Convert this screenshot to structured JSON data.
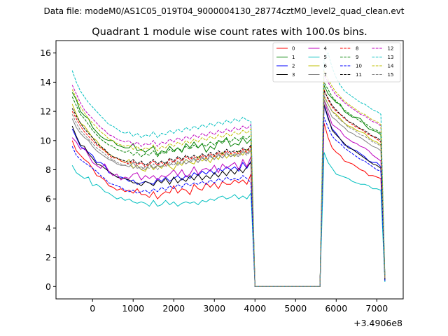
{
  "header": {
    "data_file_caption": "Data file: modeM0/AS1C05_019T04_9000004130_28774cztM0_level2_quad_clean.evt"
  },
  "chart_data": {
    "type": "line",
    "title": "Quadrant 1 module wise count rates with 100.0s bins.",
    "x_offset_label": "+3.4906e8",
    "xlim": [
      -900,
      7650
    ],
    "ylim": [
      -0.85,
      16.85
    ],
    "x_ticks": [
      0,
      1000,
      2000,
      3000,
      4000,
      5000,
      6000,
      7000
    ],
    "y_ticks": [
      0,
      2,
      4,
      6,
      8,
      10,
      12,
      14,
      16
    ],
    "x": [
      -500,
      -400,
      -300,
      -200,
      -100,
      0,
      100,
      200,
      300,
      400,
      500,
      600,
      700,
      800,
      900,
      1000,
      1100,
      1200,
      1300,
      1400,
      1500,
      1600,
      1700,
      1800,
      1900,
      2000,
      2100,
      2200,
      2300,
      2400,
      2500,
      2600,
      2700,
      2800,
      2900,
      3000,
      3100,
      3200,
      3300,
      3400,
      3500,
      3600,
      3700,
      3800,
      3900,
      4000,
      5600,
      5700,
      5800,
      5900,
      6000,
      6100,
      6200,
      6300,
      6400,
      6500,
      6600,
      6700,
      6800,
      6900,
      7000,
      7100,
      7200
    ],
    "series": [
      {
        "name": "0",
        "color": "#ff0000",
        "dash": "solid",
        "values": [
          10.0,
          9.3,
          9.0,
          8.7,
          8.5,
          8.1,
          7.6,
          7.5,
          7.3,
          6.9,
          6.8,
          6.6,
          6.7,
          6.5,
          6.6,
          6.4,
          6.7,
          6.3,
          6.3,
          6.1,
          6.5,
          6.0,
          6.3,
          6.5,
          6.4,
          6.9,
          6.4,
          6.7,
          6.6,
          6.3,
          7.0,
          6.7,
          6.6,
          7.1,
          6.8,
          7.1,
          6.7,
          7.2,
          7.0,
          7.0,
          7.3,
          7.1,
          7.3,
          7.0,
          7.7,
          0.0,
          0.0,
          11.2,
          10.2,
          9.5,
          9.2,
          9.0,
          8.6,
          8.5,
          8.4,
          8.2,
          8.0,
          7.9,
          7.6,
          7.6,
          7.5,
          7.4,
          0.4
        ]
      },
      {
        "name": "1",
        "color": "#008000",
        "dash": "solid",
        "values": [
          13.3,
          12.8,
          12.0,
          11.7,
          11.5,
          10.9,
          10.6,
          10.3,
          10.1,
          10.0,
          10.0,
          9.7,
          9.6,
          9.5,
          9.5,
          9.8,
          9.3,
          9.4,
          9.2,
          9.4,
          9.6,
          9.0,
          9.3,
          9.2,
          9.6,
          9.3,
          9.5,
          9.2,
          9.8,
          9.5,
          9.9,
          9.5,
          9.8,
          9.2,
          9.6,
          9.4,
          10.0,
          9.9,
          10.2,
          9.6,
          9.8,
          9.7,
          10.2,
          9.8,
          10.1,
          0.0,
          0.0,
          13.8,
          13.2,
          12.9,
          12.6,
          12.5,
          12.0,
          11.8,
          11.6,
          11.6,
          11.5,
          11.1,
          10.8,
          10.7,
          10.6,
          10.4,
          0.5
        ]
      },
      {
        "name": "2",
        "color": "#0000ff",
        "dash": "solid",
        "values": [
          10.8,
          10.2,
          9.6,
          9.4,
          9.2,
          9.0,
          8.5,
          8.5,
          8.3,
          7.8,
          7.7,
          7.5,
          7.5,
          7.4,
          7.2,
          7.3,
          7.0,
          7.1,
          7.2,
          7.1,
          7.0,
          7.4,
          7.2,
          7.5,
          7.2,
          7.4,
          7.6,
          7.3,
          7.6,
          7.4,
          7.8,
          7.6,
          7.9,
          7.7,
          8.0,
          7.7,
          8.1,
          7.9,
          8.2,
          8.0,
          8.2,
          7.9,
          8.5,
          8.1,
          8.6,
          0.0,
          0.0,
          12.4,
          11.5,
          10.8,
          10.5,
          10.1,
          9.7,
          9.6,
          9.4,
          9.3,
          9.1,
          8.9,
          8.6,
          8.5,
          8.5,
          8.2,
          0.4
        ]
      },
      {
        "name": "3",
        "color": "#000000",
        "dash": "solid",
        "values": [
          11.0,
          10.3,
          9.7,
          9.6,
          9.1,
          8.8,
          8.4,
          8.3,
          8.1,
          7.9,
          7.7,
          7.5,
          7.4,
          7.4,
          7.3,
          7.1,
          7.1,
          6.9,
          7.2,
          7.1,
          6.9,
          7.3,
          7.1,
          7.4,
          7.0,
          7.5,
          7.1,
          7.4,
          7.2,
          7.6,
          7.3,
          7.7,
          7.3,
          7.6,
          7.4,
          7.8,
          7.5,
          7.9,
          7.6,
          8.0,
          7.7,
          8.1,
          7.8,
          8.2,
          8.5,
          0.0,
          0.0,
          12.5,
          11.6,
          10.7,
          10.4,
          10.1,
          9.8,
          9.5,
          9.4,
          9.2,
          9.0,
          8.8,
          8.6,
          8.4,
          8.3,
          8.1,
          0.4
        ]
      },
      {
        "name": "4",
        "color": "#bf00bf",
        "dash": "solid",
        "values": [
          10.2,
          9.9,
          9.4,
          9.5,
          9.0,
          8.5,
          8.3,
          8.1,
          8.4,
          7.9,
          7.6,
          7.7,
          7.3,
          7.5,
          7.4,
          7.7,
          7.8,
          7.3,
          7.6,
          7.4,
          7.6,
          7.3,
          7.6,
          7.5,
          7.7,
          8.0,
          7.6,
          8.0,
          7.5,
          7.7,
          8.2,
          7.7,
          8.0,
          8.1,
          7.9,
          8.3,
          7.8,
          8.4,
          8.1,
          8.3,
          8.5,
          8.0,
          8.7,
          8.2,
          8.9,
          0.0,
          0.0,
          12.8,
          11.9,
          11.1,
          10.9,
          10.7,
          10.3,
          10.1,
          9.9,
          9.8,
          9.6,
          9.5,
          9.3,
          9.0,
          8.8,
          8.6,
          0.5
        ]
      },
      {
        "name": "5",
        "color": "#00bfbf",
        "dash": "solid",
        "values": [
          8.3,
          7.8,
          7.6,
          7.4,
          7.5,
          6.9,
          7.0,
          6.8,
          6.5,
          6.4,
          6.2,
          6.0,
          6.1,
          5.9,
          6.0,
          5.8,
          5.7,
          5.8,
          5.7,
          5.5,
          5.9,
          5.5,
          5.6,
          5.9,
          5.6,
          5.8,
          5.5,
          5.7,
          5.8,
          5.7,
          5.8,
          5.6,
          5.9,
          5.8,
          6.0,
          5.9,
          6.1,
          6.2,
          6.0,
          6.1,
          6.3,
          6.0,
          6.2,
          6.0,
          6.4,
          0.0,
          0.0,
          9.2,
          8.5,
          8.1,
          7.7,
          7.6,
          7.5,
          7.4,
          7.2,
          7.1,
          7.0,
          7.0,
          6.9,
          6.7,
          6.7,
          6.6,
          0.3
        ]
      },
      {
        "name": "6",
        "color": "#bfbf00",
        "dash": "solid",
        "values": [
          12.5,
          11.8,
          11.2,
          11.0,
          10.6,
          10.2,
          10.0,
          9.6,
          9.3,
          9.1,
          8.9,
          8.8,
          8.6,
          8.5,
          8.7,
          8.1,
          8.3,
          8.0,
          7.9,
          8.4,
          8.0,
          8.3,
          8.1,
          8.5,
          8.2,
          8.0,
          8.5,
          8.3,
          8.7,
          8.5,
          8.4,
          8.9,
          8.6,
          8.8,
          8.5,
          9.0,
          8.7,
          9.2,
          8.8,
          9.1,
          8.9,
          9.3,
          9.0,
          9.4,
          9.2,
          0.0,
          0.0,
          13.0,
          12.5,
          12.0,
          11.8,
          11.5,
          11.2,
          11.0,
          10.9,
          10.7,
          10.6,
          10.5,
          10.2,
          10.0,
          9.9,
          9.7,
          0.5
        ]
      },
      {
        "name": "7",
        "color": "#808080",
        "dash": "solid",
        "values": [
          11.5,
          10.9,
          10.5,
          10.2,
          10.0,
          9.6,
          9.3,
          9.1,
          8.9,
          8.7,
          8.6,
          8.4,
          8.3,
          8.3,
          8.2,
          8.5,
          8.1,
          8.2,
          8.0,
          8.4,
          8.1,
          8.3,
          8.2,
          8.5,
          8.3,
          8.6,
          8.3,
          8.7,
          8.4,
          8.6,
          8.8,
          8.5,
          8.9,
          8.6,
          9.0,
          8.7,
          9.1,
          8.8,
          9.2,
          8.9,
          9.1,
          9.0,
          9.3,
          9.1,
          9.4,
          0.0,
          0.0,
          12.8,
          12.2,
          11.6,
          11.4,
          11.1,
          10.9,
          10.6,
          10.5,
          10.3,
          10.2,
          10.0,
          9.8,
          9.6,
          9.5,
          9.3,
          0.5
        ]
      },
      {
        "name": "8",
        "color": "#ff0000",
        "dash": "dashed",
        "values": [
          12.0,
          11.5,
          11.0,
          10.6,
          10.3,
          10.0,
          9.7,
          9.5,
          9.3,
          9.0,
          8.8,
          8.8,
          8.6,
          8.5,
          8.4,
          8.6,
          8.3,
          8.5,
          8.2,
          8.4,
          8.6,
          8.3,
          8.5,
          8.3,
          8.7,
          8.5,
          8.8,
          8.6,
          8.9,
          8.7,
          8.9,
          8.7,
          9.0,
          8.8,
          9.1,
          8.9,
          9.2,
          9.0,
          9.3,
          9.1,
          9.2,
          9.1,
          9.4,
          9.2,
          9.6,
          0.0,
          0.0,
          13.5,
          12.8,
          12.3,
          12.0,
          11.8,
          11.5,
          11.3,
          11.1,
          10.9,
          10.8,
          10.6,
          10.4,
          10.3,
          10.1,
          9.9,
          0.5
        ]
      },
      {
        "name": "9",
        "color": "#008000",
        "dash": "dashed",
        "values": [
          13.0,
          12.4,
          11.8,
          11.5,
          11.1,
          10.7,
          10.4,
          10.1,
          9.9,
          9.7,
          9.6,
          9.4,
          9.3,
          9.2,
          9.3,
          9.0,
          9.2,
          8.9,
          9.1,
          9.0,
          9.3,
          8.9,
          9.2,
          9.1,
          9.4,
          9.2,
          9.5,
          9.3,
          9.6,
          9.4,
          9.7,
          9.5,
          9.8,
          9.6,
          9.9,
          9.7,
          10.0,
          9.8,
          10.1,
          9.9,
          10.2,
          10.0,
          10.3,
          10.1,
          10.4,
          0.0,
          0.0,
          14.0,
          13.5,
          13.0,
          12.7,
          12.4,
          12.1,
          11.9,
          11.7,
          11.5,
          11.3,
          11.2,
          11.0,
          10.8,
          10.7,
          10.5,
          0.6
        ]
      },
      {
        "name": "10",
        "color": "#0000ff",
        "dash": "dashed",
        "values": [
          9.6,
          9.0,
          8.7,
          8.5,
          8.3,
          8.1,
          7.9,
          7.6,
          7.4,
          7.1,
          7.0,
          6.9,
          6.8,
          6.6,
          6.5,
          6.6,
          6.4,
          6.5,
          6.6,
          6.4,
          6.7,
          6.5,
          6.8,
          6.6,
          6.9,
          6.7,
          7.0,
          6.8,
          7.1,
          6.9,
          7.1,
          7.0,
          7.2,
          7.0,
          7.3,
          7.1,
          7.4,
          7.2,
          7.5,
          7.3,
          7.4,
          7.3,
          7.6,
          7.4,
          7.1,
          0.0,
          0.0,
          11.6,
          10.9,
          10.3,
          10.0,
          9.8,
          9.5,
          9.3,
          9.1,
          8.9,
          8.7,
          8.6,
          8.4,
          8.2,
          8.0,
          7.9,
          0.4
        ]
      },
      {
        "name": "11",
        "color": "#000000",
        "dash": "dashed",
        "values": [
          12.2,
          11.7,
          11.2,
          10.8,
          10.5,
          10.2,
          9.8,
          9.6,
          9.4,
          9.1,
          8.9,
          8.8,
          8.7,
          8.6,
          8.5,
          8.7,
          8.4,
          8.6,
          8.3,
          8.5,
          8.7,
          8.4,
          8.6,
          8.4,
          8.8,
          8.6,
          8.9,
          8.7,
          9.0,
          8.8,
          9.0,
          8.8,
          9.1,
          8.9,
          9.2,
          9.0,
          9.3,
          9.1,
          9.4,
          9.2,
          9.3,
          9.2,
          9.5,
          9.3,
          9.7,
          0.0,
          0.0,
          13.4,
          12.9,
          12.4,
          12.1,
          11.8,
          11.6,
          11.3,
          11.2,
          11.0,
          10.8,
          10.7,
          10.5,
          10.3,
          10.2,
          10.0,
          0.5
        ]
      },
      {
        "name": "12",
        "color": "#bf00bf",
        "dash": "dashed",
        "values": [
          13.8,
          13.2,
          12.6,
          12.1,
          11.8,
          11.5,
          11.2,
          10.9,
          10.7,
          10.4,
          10.3,
          10.1,
          10.0,
          9.9,
          10.0,
          9.7,
          9.9,
          9.6,
          9.8,
          9.7,
          10.0,
          9.6,
          9.9,
          9.8,
          10.1,
          9.9,
          10.2,
          10.0,
          10.3,
          10.1,
          10.4,
          10.2,
          10.5,
          10.3,
          10.6,
          10.4,
          10.7,
          10.5,
          10.8,
          10.6,
          10.9,
          10.7,
          11.0,
          10.8,
          11.1,
          0.0,
          0.0,
          14.5,
          14.0,
          13.5,
          13.1,
          12.9,
          12.6,
          12.4,
          12.2,
          12.0,
          11.8,
          11.7,
          11.5,
          11.3,
          11.2,
          11.0,
          0.6
        ]
      },
      {
        "name": "13",
        "color": "#00bfbf",
        "dash": "dashed",
        "values": [
          14.8,
          14.0,
          13.4,
          13.0,
          12.6,
          12.3,
          12.0,
          11.7,
          11.4,
          11.1,
          11.0,
          10.8,
          10.6,
          10.5,
          10.6,
          10.3,
          10.5,
          10.2,
          10.4,
          10.3,
          10.6,
          10.2,
          10.5,
          10.4,
          10.7,
          10.5,
          10.8,
          10.6,
          10.9,
          10.7,
          11.0,
          10.8,
          11.1,
          10.9,
          11.2,
          11.0,
          11.3,
          11.1,
          11.4,
          11.2,
          11.5,
          11.3,
          11.6,
          11.4,
          11.3,
          0.0,
          0.0,
          15.5,
          16.0,
          15.0,
          14.3,
          13.8,
          13.4,
          13.2,
          13.0,
          12.8,
          12.6,
          12.5,
          12.3,
          12.1,
          12.0,
          11.8,
          0.7
        ]
      },
      {
        "name": "14",
        "color": "#bfbf00",
        "dash": "dashed",
        "values": [
          13.5,
          12.9,
          12.3,
          11.9,
          11.5,
          11.2,
          10.9,
          10.6,
          10.4,
          10.1,
          10.0,
          9.8,
          9.7,
          9.6,
          9.7,
          9.4,
          9.6,
          9.3,
          9.5,
          9.4,
          9.7,
          9.3,
          9.6,
          9.5,
          9.8,
          9.6,
          9.9,
          9.7,
          10.0,
          9.8,
          10.1,
          9.9,
          10.2,
          10.0,
          10.3,
          10.1,
          10.4,
          10.2,
          10.5,
          10.3,
          10.6,
          10.4,
          10.7,
          10.5,
          10.8,
          0.0,
          0.0,
          14.8,
          14.2,
          13.7,
          13.3,
          13.0,
          12.7,
          12.5,
          12.3,
          12.1,
          11.9,
          11.8,
          11.6,
          11.4,
          11.3,
          11.1,
          0.6
        ]
      },
      {
        "name": "15",
        "color": "#808080",
        "dash": "dashed",
        "values": [
          11.8,
          11.2,
          10.7,
          10.4,
          10.1,
          9.8,
          9.5,
          9.3,
          9.1,
          8.8,
          8.7,
          8.5,
          8.4,
          8.3,
          8.4,
          8.1,
          8.3,
          8.0,
          8.2,
          8.1,
          8.4,
          8.0,
          8.3,
          8.2,
          8.5,
          8.3,
          8.6,
          8.4,
          8.7,
          8.5,
          8.7,
          8.5,
          8.8,
          8.6,
          8.9,
          8.7,
          9.0,
          8.8,
          9.1,
          8.9,
          9.0,
          8.9,
          9.2,
          9.0,
          9.3,
          0.0,
          0.0,
          13.1,
          12.5,
          12.0,
          11.7,
          11.4,
          11.2,
          10.9,
          10.8,
          10.6,
          10.4,
          10.3,
          10.1,
          9.9,
          9.8,
          9.6,
          0.5
        ]
      }
    ],
    "legend_position": "top-right",
    "legend_columns": 4
  }
}
